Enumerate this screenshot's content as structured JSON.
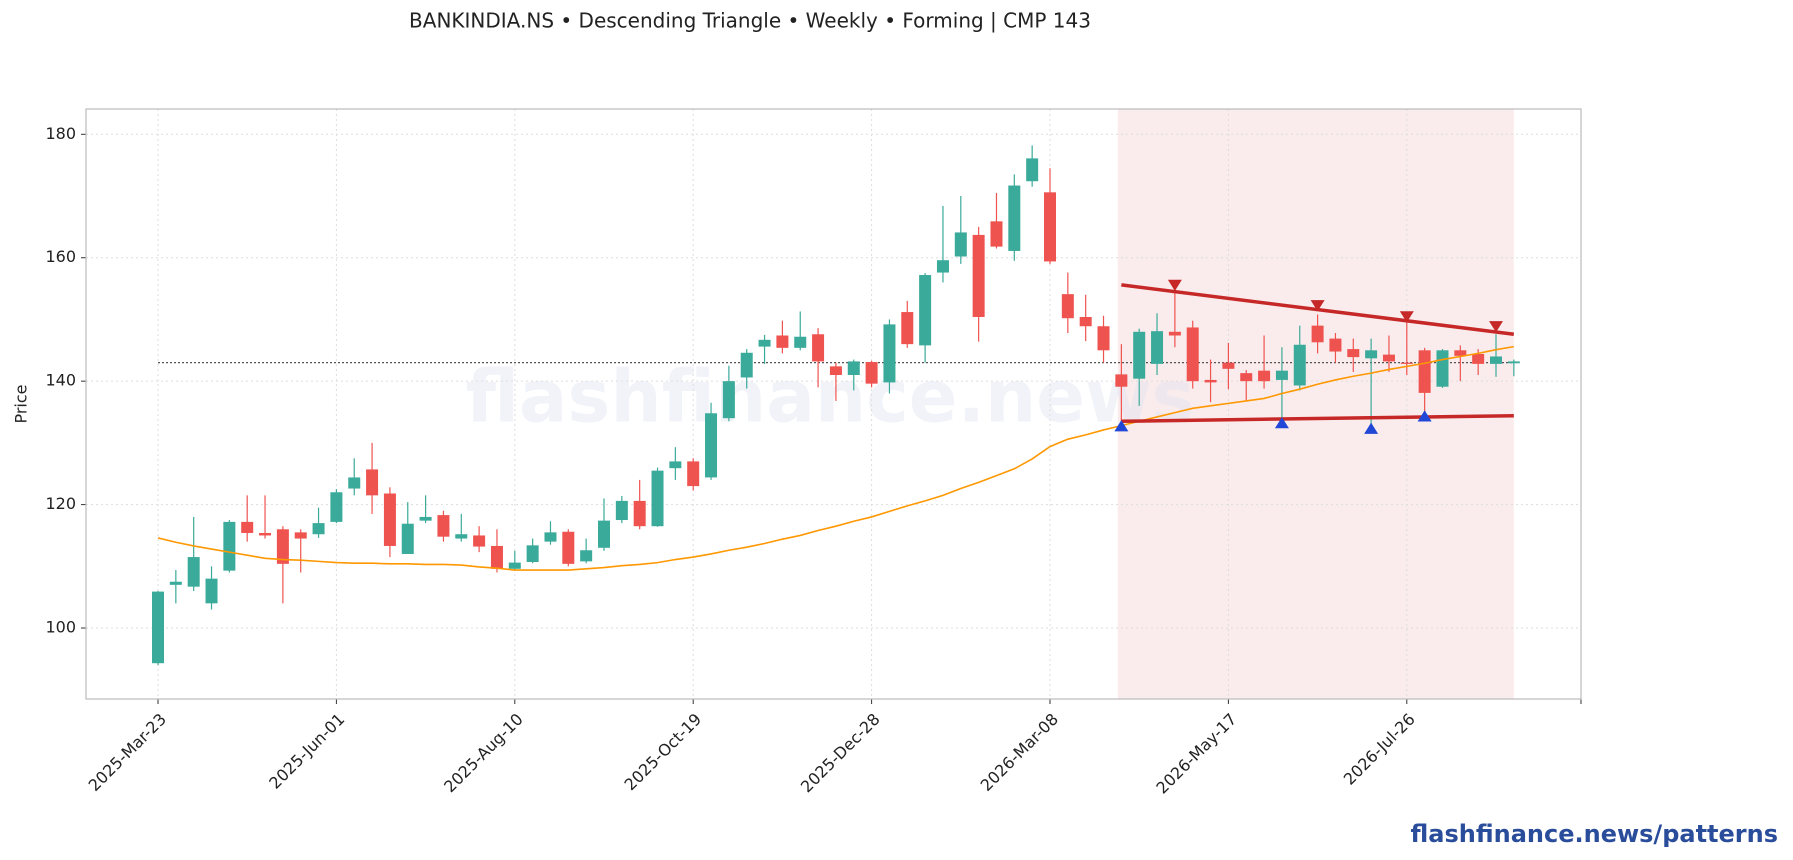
{
  "chart_data": {
    "type": "candlestick",
    "title": "BANKINDIA.NS  •  Descending Triangle  •  Weekly  •  Forming  |  CMP 143",
    "y_label": "Price",
    "watermark": "flashfinance.news",
    "footer": "flashfinance.news/patterns",
    "categories": [
      "2025-Mar-23",
      null,
      null,
      null,
      null,
      null,
      null,
      null,
      null,
      null,
      "2025-Jun-01",
      null,
      null,
      null,
      null,
      null,
      null,
      null,
      null,
      null,
      "2025-Aug-10",
      null,
      null,
      null,
      null,
      null,
      null,
      null,
      null,
      null,
      "2025-Oct-19",
      null,
      null,
      null,
      null,
      null,
      null,
      null,
      null,
      null,
      "2025-Dec-28",
      null,
      null,
      null,
      null,
      null,
      null,
      null,
      null,
      null,
      "2026-Mar-08",
      null,
      null,
      null,
      null,
      null,
      null,
      null,
      null,
      null,
      "2026-May-17",
      null,
      null,
      null,
      null,
      null,
      null,
      null,
      null,
      null,
      "2026-Jul-26",
      null,
      null,
      null,
      null,
      null,
      null
    ],
    "open": [
      94.3,
      107,
      106.7,
      104,
      109.3,
      117.2,
      115.4,
      116,
      115.5,
      115.2,
      117.2,
      122.6,
      125.7,
      121.8,
      112,
      117.4,
      118.3,
      114.5,
      115,
      113.3,
      109.6,
      110.7,
      114,
      115.6,
      110.8,
      113,
      117.5,
      120.6,
      116.5,
      125.9,
      127,
      124.4,
      134,
      140.6,
      145.6,
      147.4,
      145.4,
      147.6,
      142.4,
      141,
      143.1,
      139.8,
      151.2,
      145.8,
      157.6,
      160.2,
      163.7,
      165.9,
      161.1,
      172.4,
      170.6,
      154.1,
      150.4,
      148.9,
      141.1,
      140.4,
      142.8,
      148,
      148.7,
      140.2,
      143,
      141.3,
      141.7,
      140.2,
      139.3,
      149,
      146.9,
      145.2,
      143.7,
      144.3,
      143,
      145,
      139.1,
      145,
      144.4,
      142.8,
      142.9
    ],
    "high": [
      106,
      109.4,
      118,
      110,
      117.5,
      121.5,
      121.5,
      116.5,
      116,
      119.5,
      122.5,
      127.5,
      130,
      122.8,
      120.4,
      121.5,
      119,
      118.5,
      116.5,
      116,
      112.5,
      114.5,
      117.3,
      116,
      114.5,
      121,
      121.4,
      124,
      126,
      129.3,
      127.5,
      136.5,
      142.5,
      145.2,
      147.5,
      149.8,
      151.3,
      148.6,
      143,
      143.5,
      143.3,
      150,
      153,
      157.5,
      168.4,
      170,
      165,
      170.5,
      173.5,
      178.2,
      174.5,
      157.6,
      154,
      150.6,
      146,
      148.5,
      151,
      155,
      149.8,
      143.5,
      146.2,
      141.8,
      147.4,
      145.5,
      149,
      150.8,
      147.8,
      146.9,
      146.9,
      147.4,
      150,
      145.4,
      145.2,
      145.8,
      145.2,
      147.6,
      143.5
    ],
    "low": [
      94,
      104,
      106,
      103,
      109,
      114,
      114.5,
      104,
      109,
      114.6,
      117,
      121.5,
      118.5,
      111.5,
      112,
      117,
      114,
      114,
      112.3,
      109,
      109.3,
      110.5,
      113.5,
      110,
      110.5,
      112.5,
      117,
      116,
      116.4,
      124,
      122.3,
      124,
      133.5,
      138.8,
      142.8,
      144.5,
      145,
      139,
      136.8,
      138.5,
      139,
      138,
      145.4,
      143,
      156,
      159,
      146.4,
      161.5,
      159.5,
      171.5,
      159,
      147.8,
      146.5,
      143,
      133.5,
      136,
      141,
      145.5,
      138.8,
      136.6,
      138.7,
      136.8,
      138.8,
      133.8,
      138.5,
      144.5,
      143,
      141.5,
      132.9,
      141.5,
      141,
      134.8,
      138.9,
      140,
      141,
      140.7,
      140.8
    ],
    "close": [
      105.9,
      107.5,
      111.5,
      108,
      117.2,
      115.4,
      115,
      110.4,
      114.5,
      117,
      122,
      124.4,
      121.5,
      113.3,
      116.9,
      118,
      114.8,
      115.2,
      113.2,
      109.6,
      110.6,
      113.4,
      115.5,
      110.4,
      112.6,
      117.4,
      120.6,
      116.5,
      125.5,
      127,
      123,
      134.8,
      140,
      144.6,
      146.7,
      145.4,
      147.2,
      143.2,
      141,
      143.2,
      139.6,
      149.2,
      146,
      157.2,
      159.6,
      164.1,
      150.4,
      161.8,
      171.7,
      176.1,
      159.4,
      150.2,
      148.9,
      145,
      139.1,
      148,
      148.1,
      147.4,
      140,
      139.8,
      142,
      140,
      140,
      141.7,
      145.9,
      146.3,
      144.8,
      143.9,
      145,
      143.2,
      142.8,
      138.1,
      145,
      144.1,
      142.8,
      144,
      143.2
    ],
    "up_color": "#3aaa9a",
    "down_color": "#ef5350",
    "ma": {
      "color": "#ff9800",
      "values": [
        114.6,
        113.9,
        113.3,
        112.8,
        112.3,
        111.8,
        111.3,
        111.1,
        111.0,
        110.8,
        110.6,
        110.5,
        110.5,
        110.4,
        110.4,
        110.3,
        110.3,
        110.2,
        109.9,
        109.7,
        109.4,
        109.4,
        109.4,
        109.4,
        109.6,
        109.8,
        110.1,
        110.3,
        110.6,
        111.1,
        111.5,
        112.0,
        112.6,
        113.1,
        113.7,
        114.4,
        115.0,
        115.8,
        116.5,
        117.3,
        118.0,
        118.9,
        119.8,
        120.6,
        121.5,
        122.6,
        123.6,
        124.7,
        125.8,
        127.4,
        129.4,
        130.6,
        131.3,
        132.1,
        132.8,
        133.5,
        134.2,
        134.9,
        135.6,
        136.0,
        136.4,
        136.8,
        137.2,
        138.0,
        138.7,
        139.5,
        140.2,
        140.8,
        141.3,
        141.9,
        142.4,
        142.9,
        143.5,
        144.0,
        144.5,
        145.1,
        145.6
      ]
    },
    "cmp_line": 143,
    "pattern_zone": [
      53.8,
      76
    ],
    "zone_color": "#f6dcdc",
    "resistance": {
      "color": "#c62828",
      "x": [
        54,
        76
      ],
      "values": [
        155.6,
        147.6
      ]
    },
    "support": {
      "color": "#c62828",
      "x": [
        54,
        76
      ],
      "values": [
        133.5,
        134.4
      ]
    },
    "pivot_highs": {
      "color": "#c62828",
      "x": [
        57,
        65,
        70,
        75
      ],
      "values": [
        155.3,
        152,
        150.2,
        148.6
      ]
    },
    "pivot_lows": {
      "color": "#2147d6",
      "x": [
        54,
        63,
        68,
        71
      ],
      "values": [
        133,
        133.5,
        132.6,
        134.6
      ]
    },
    "ylim": [
      88.5,
      184.1
    ],
    "yticks": [
      100,
      120,
      140,
      160,
      180
    ],
    "grid": true
  }
}
